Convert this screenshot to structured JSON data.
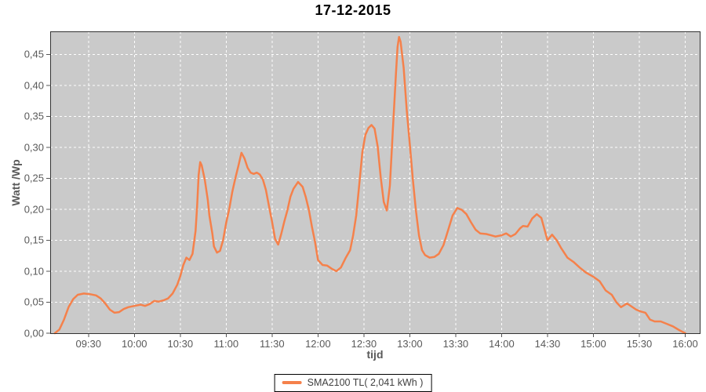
{
  "chart_data": {
    "type": "line",
    "title": "17-12-2015",
    "xlabel": "tijd",
    "ylabel": "Watt /Wp",
    "grid": "white dashed, on",
    "legend_position": "bottom-center",
    "plot_bg": "#CACACA",
    "grid_color": "#FFFFFF",
    "border_color": "#333333",
    "axis_text_color": "#595959",
    "xlim_minutes": [
      545,
      970
    ],
    "ylim": [
      0,
      0.487
    ],
    "x_tick_times": [
      "09:30",
      "10:00",
      "10:30",
      "11:00",
      "11:30",
      "12:00",
      "12:30",
      "13:00",
      "13:30",
      "14:00",
      "14:30",
      "15:00",
      "15:30",
      "16:00"
    ],
    "y_tick_values": [
      0,
      0.05,
      0.1,
      0.15,
      0.2,
      0.25,
      0.3,
      0.35,
      0.4,
      0.45
    ],
    "y_tick_labels": [
      "0,00",
      "0,05",
      "0,10",
      "0,15",
      "0,20",
      "0,25",
      "0,30",
      "0,35",
      "0,40",
      "0,45"
    ],
    "series": [
      {
        "name": "SMA2100 TL( 2,041 kWh )",
        "color": "#F5814B",
        "points": [
          [
            "09:08",
            0.0
          ],
          [
            "09:11",
            0.006
          ],
          [
            "09:14",
            0.022
          ],
          [
            "09:17",
            0.042
          ],
          [
            "09:20",
            0.055
          ],
          [
            "09:23",
            0.062
          ],
          [
            "09:27",
            0.064
          ],
          [
            "09:31",
            0.063
          ],
          [
            "09:35",
            0.061
          ],
          [
            "09:38",
            0.056
          ],
          [
            "09:41",
            0.048
          ],
          [
            "09:44",
            0.038
          ],
          [
            "09:47",
            0.033
          ],
          [
            "09:50",
            0.034
          ],
          [
            "09:53",
            0.039
          ],
          [
            "09:56",
            0.042
          ],
          [
            "10:00",
            0.044
          ],
          [
            "10:04",
            0.046
          ],
          [
            "10:07",
            0.044
          ],
          [
            "10:10",
            0.047
          ],
          [
            "10:13",
            0.052
          ],
          [
            "10:16",
            0.051
          ],
          [
            "10:19",
            0.053
          ],
          [
            "10:22",
            0.056
          ],
          [
            "10:25",
            0.064
          ],
          [
            "10:28",
            0.078
          ],
          [
            "10:30",
            0.092
          ],
          [
            "10:32",
            0.11
          ],
          [
            "10:34",
            0.122
          ],
          [
            "10:36",
            0.118
          ],
          [
            "10:38",
            0.128
          ],
          [
            "10:40",
            0.165
          ],
          [
            "10:41",
            0.205
          ],
          [
            "10:42",
            0.255
          ],
          [
            "10:43",
            0.276
          ],
          [
            "10:44",
            0.271
          ],
          [
            "10:46",
            0.248
          ],
          [
            "10:48",
            0.215
          ],
          [
            "10:49",
            0.19
          ],
          [
            "10:51",
            0.16
          ],
          [
            "10:52",
            0.14
          ],
          [
            "10:54",
            0.13
          ],
          [
            "10:56",
            0.133
          ],
          [
            "10:58",
            0.15
          ],
          [
            "11:00",
            0.178
          ],
          [
            "11:02",
            0.2
          ],
          [
            "11:04",
            0.228
          ],
          [
            "11:06",
            0.25
          ],
          [
            "11:08",
            0.27
          ],
          [
            "11:10",
            0.291
          ],
          [
            "11:12",
            0.282
          ],
          [
            "11:14",
            0.267
          ],
          [
            "11:16",
            0.259
          ],
          [
            "11:18",
            0.257
          ],
          [
            "11:20",
            0.259
          ],
          [
            "11:22",
            0.256
          ],
          [
            "11:24",
            0.248
          ],
          [
            "11:26",
            0.231
          ],
          [
            "11:28",
            0.205
          ],
          [
            "11:30",
            0.18
          ],
          [
            "11:32",
            0.152
          ],
          [
            "11:34",
            0.143
          ],
          [
            "11:36",
            0.16
          ],
          [
            "11:38",
            0.18
          ],
          [
            "11:40",
            0.198
          ],
          [
            "11:42",
            0.22
          ],
          [
            "11:44",
            0.233
          ],
          [
            "11:47",
            0.244
          ],
          [
            "11:50",
            0.236
          ],
          [
            "11:52",
            0.22
          ],
          [
            "11:54",
            0.2
          ],
          [
            "11:56",
            0.172
          ],
          [
            "11:58",
            0.148
          ],
          [
            "12:00",
            0.118
          ],
          [
            "12:03",
            0.11
          ],
          [
            "12:06",
            0.109
          ],
          [
            "12:09",
            0.104
          ],
          [
            "12:12",
            0.1
          ],
          [
            "12:15",
            0.106
          ],
          [
            "12:18",
            0.121
          ],
          [
            "12:21",
            0.134
          ],
          [
            "12:23",
            0.158
          ],
          [
            "12:25",
            0.19
          ],
          [
            "12:27",
            0.24
          ],
          [
            "12:29",
            0.292
          ],
          [
            "12:31",
            0.32
          ],
          [
            "12:33",
            0.331
          ],
          [
            "12:35",
            0.336
          ],
          [
            "12:37",
            0.33
          ],
          [
            "12:39",
            0.302
          ],
          [
            "12:41",
            0.252
          ],
          [
            "12:43",
            0.212
          ],
          [
            "12:45",
            0.198
          ],
          [
            "12:47",
            0.238
          ],
          [
            "12:49",
            0.33
          ],
          [
            "12:51",
            0.42
          ],
          [
            "12:52",
            0.462
          ],
          [
            "12:53",
            0.478
          ],
          [
            "12:54",
            0.47
          ],
          [
            "12:56",
            0.428
          ],
          [
            "12:58",
            0.36
          ],
          [
            "13:00",
            0.305
          ],
          [
            "13:02",
            0.248
          ],
          [
            "13:04",
            0.198
          ],
          [
            "13:06",
            0.158
          ],
          [
            "13:08",
            0.134
          ],
          [
            "13:10",
            0.126
          ],
          [
            "13:13",
            0.122
          ],
          [
            "13:16",
            0.123
          ],
          [
            "13:19",
            0.128
          ],
          [
            "13:22",
            0.142
          ],
          [
            "13:25",
            0.166
          ],
          [
            "13:28",
            0.19
          ],
          [
            "13:31",
            0.202
          ],
          [
            "13:34",
            0.199
          ],
          [
            "13:37",
            0.192
          ],
          [
            "13:40",
            0.179
          ],
          [
            "13:43",
            0.167
          ],
          [
            "13:46",
            0.161
          ],
          [
            "13:50",
            0.16
          ],
          [
            "13:53",
            0.158
          ],
          [
            "13:56",
            0.156
          ],
          [
            "14:00",
            0.158
          ],
          [
            "14:03",
            0.161
          ],
          [
            "14:06",
            0.156
          ],
          [
            "14:09",
            0.16
          ],
          [
            "14:12",
            0.169
          ],
          [
            "14:14",
            0.173
          ],
          [
            "14:17",
            0.172
          ],
          [
            "14:20",
            0.185
          ],
          [
            "14:23",
            0.192
          ],
          [
            "14:26",
            0.186
          ],
          [
            "14:28",
            0.168
          ],
          [
            "14:30",
            0.15
          ],
          [
            "14:33",
            0.159
          ],
          [
            "14:36",
            0.15
          ],
          [
            "14:39",
            0.137
          ],
          [
            "14:43",
            0.122
          ],
          [
            "14:47",
            0.115
          ],
          [
            "14:51",
            0.106
          ],
          [
            "14:55",
            0.098
          ],
          [
            "15:00",
            0.091
          ],
          [
            "15:04",
            0.084
          ],
          [
            "15:08",
            0.069
          ],
          [
            "15:12",
            0.062
          ],
          [
            "15:15",
            0.05
          ],
          [
            "15:18",
            0.042
          ],
          [
            "15:22",
            0.048
          ],
          [
            "15:25",
            0.043
          ],
          [
            "15:28",
            0.038
          ],
          [
            "15:31",
            0.035
          ],
          [
            "15:34",
            0.033
          ],
          [
            "15:37",
            0.022
          ],
          [
            "15:40",
            0.019
          ],
          [
            "15:44",
            0.019
          ],
          [
            "15:48",
            0.015
          ],
          [
            "15:52",
            0.011
          ],
          [
            "15:56",
            0.005
          ],
          [
            "16:00",
            0.0
          ]
        ]
      }
    ]
  }
}
